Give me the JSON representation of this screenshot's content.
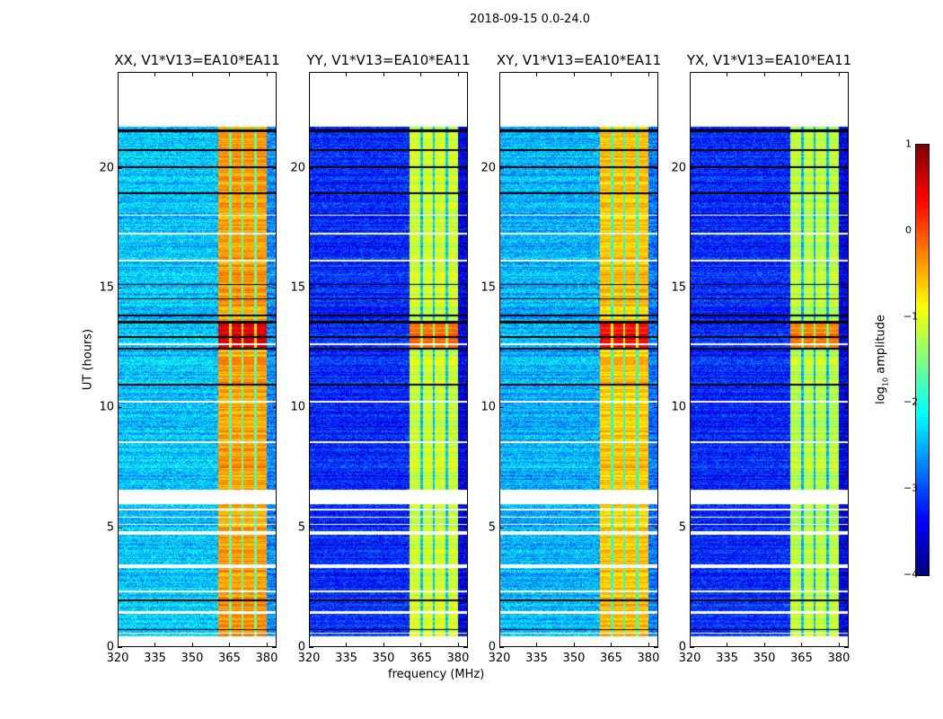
{
  "chart_data": {
    "type": "heatmap",
    "title": "2018-09-15 0.0-24.0",
    "xlabel": "frequency (MHz)",
    "ylabel": "UT (hours)",
    "xlim": [
      320,
      384
    ],
    "ylim": [
      0,
      24
    ],
    "xticks": [
      320,
      335,
      350,
      365,
      380
    ],
    "yticks": [
      0,
      5,
      10,
      15,
      20
    ],
    "xtick_labels": [
      "320",
      "335",
      "350",
      "365",
      "380"
    ],
    "ytick_labels": [
      "0",
      "5",
      "10",
      "15",
      "20"
    ],
    "colorbar": {
      "label_prefix": "log",
      "label_sub": "10",
      "label_suffix": " amplitude",
      "range": [
        -4,
        1
      ],
      "ticks": [
        "1",
        "0",
        "−1",
        "−2",
        "−3",
        "−4"
      ],
      "colormap": "jet"
    },
    "panels": [
      {
        "title": "XX, V1*V13=EA10*EA11",
        "background_log_amp": -2.4,
        "band_log_amp": -0.4
      },
      {
        "title": "YY, V1*V13=EA10*EA11",
        "background_log_amp": -3.2,
        "band_log_amp": -1.1
      },
      {
        "title": "XY, V1*V13=EA10*EA11",
        "background_log_amp": -2.5,
        "band_log_amp": -0.6
      },
      {
        "title": "YX, V1*V13=EA10*EA11",
        "background_log_amp": -3.2,
        "band_log_amp": -1.2
      }
    ],
    "band_mhz": [
      360.5,
      380
    ],
    "band_channel_gaps_mhz": [
      365.5,
      370.3,
      375.4
    ],
    "data_time_range_hours": [
      0.45,
      21.7
    ],
    "flagged_hours": [
      [
        0,
        0.45
      ],
      [
        0.55,
        0.6
      ],
      [
        1.4,
        1.5
      ],
      [
        2.3,
        2.38
      ],
      [
        3.3,
        3.45
      ],
      [
        4.7,
        4.85
      ],
      [
        5.1,
        5.15
      ],
      [
        5.4,
        5.45
      ],
      [
        5.7,
        5.78
      ],
      [
        5.95,
        6.55
      ],
      [
        8.5,
        8.58
      ],
      [
        10.2,
        10.28
      ],
      [
        12.6,
        12.66
      ],
      [
        16.1,
        16.16
      ],
      [
        17.2,
        17.27
      ],
      [
        18.0,
        18.05
      ],
      [
        21.7,
        24
      ]
    ],
    "zero_hours": [
      [
        0.7,
        0.76
      ],
      [
        1.9,
        2.0
      ],
      [
        10.9,
        10.97
      ],
      [
        12.4,
        12.5
      ],
      [
        12.9,
        12.97
      ],
      [
        13.5,
        13.6
      ],
      [
        13.8,
        13.88
      ],
      [
        14.5,
        14.55
      ],
      [
        15.1,
        15.15
      ],
      [
        18.9,
        18.98
      ],
      [
        20.0,
        20.08
      ],
      [
        20.7,
        20.78
      ],
      [
        21.5,
        21.6
      ]
    ],
    "high_activity_hours": [
      [
        12.4,
        13.5
      ]
    ]
  }
}
